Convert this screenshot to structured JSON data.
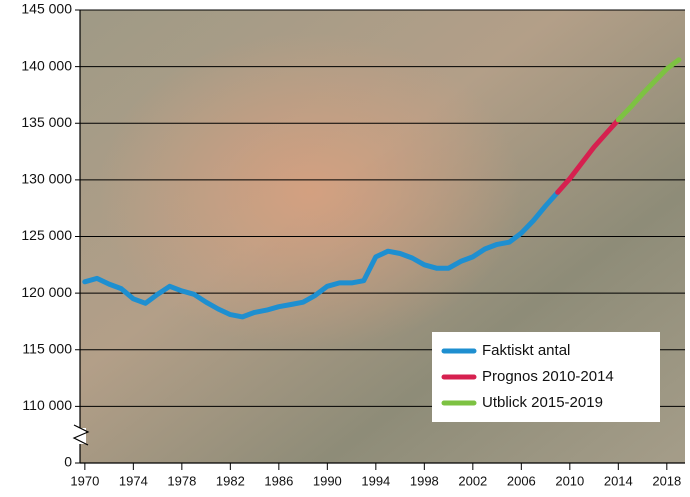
{
  "chart_data": {
    "type": "line",
    "x": [
      1970,
      1971,
      1972,
      1973,
      1974,
      1975,
      1976,
      1977,
      1978,
      1979,
      1980,
      1981,
      1982,
      1983,
      1984,
      1985,
      1986,
      1987,
      1988,
      1989,
      1990,
      1991,
      1992,
      1993,
      1994,
      1995,
      1996,
      1997,
      1998,
      1999,
      2000,
      2001,
      2002,
      2003,
      2004,
      2005,
      2006,
      2007,
      2008,
      2009,
      2010,
      2011,
      2012,
      2013,
      2014,
      2015,
      2016,
      2017,
      2018,
      2019
    ],
    "series": [
      {
        "name": "Faktiskt antal",
        "color": "#1e8fd0",
        "values": [
          121000,
          121300,
          120800,
          120400,
          119500,
          119100,
          119900,
          120600,
          120200,
          119900,
          119200,
          118600,
          118100,
          117900,
          118300,
          118500,
          118800,
          119000,
          119200,
          119800,
          120600,
          120900,
          120900,
          121100,
          123200,
          123700,
          123500,
          123100,
          122500,
          122200,
          122200,
          122800,
          123200,
          123900,
          124300,
          124500,
          125300,
          126400,
          127700,
          128900,
          null,
          null,
          null,
          null,
          null,
          null,
          null,
          null,
          null,
          null
        ]
      },
      {
        "name": "Prognos 2010-2014",
        "color": "#d6204f",
        "values": [
          null,
          null,
          null,
          null,
          null,
          null,
          null,
          null,
          null,
          null,
          null,
          null,
          null,
          null,
          null,
          null,
          null,
          null,
          null,
          null,
          null,
          null,
          null,
          null,
          null,
          null,
          null,
          null,
          null,
          null,
          null,
          null,
          null,
          null,
          null,
          null,
          null,
          null,
          null,
          128900,
          130100,
          131500,
          132900,
          134100,
          135300,
          null,
          null,
          null,
          null,
          null
        ]
      },
      {
        "name": "Utblick 2015-2019",
        "color": "#7dc242",
        "values": [
          null,
          null,
          null,
          null,
          null,
          null,
          null,
          null,
          null,
          null,
          null,
          null,
          null,
          null,
          null,
          null,
          null,
          null,
          null,
          null,
          null,
          null,
          null,
          null,
          null,
          null,
          null,
          null,
          null,
          null,
          null,
          null,
          null,
          null,
          null,
          null,
          null,
          null,
          null,
          null,
          null,
          null,
          null,
          null,
          135300,
          136400,
          137600,
          138700,
          139800,
          140600
        ]
      }
    ],
    "xlim": [
      1969.6,
      2019.5
    ],
    "xticks": [
      1970,
      1974,
      1978,
      1982,
      1986,
      1990,
      1994,
      1998,
      2002,
      2006,
      2010,
      2014,
      2018
    ],
    "ylim": [
      105000,
      145000
    ],
    "yticks": [
      0,
      {
        "value": 110000,
        "label": "110 000"
      },
      {
        "value": 115000,
        "label": "115 000"
      },
      {
        "value": 120000,
        "label": "120 000"
      },
      {
        "value": 125000,
        "label": "125 000"
      },
      {
        "value": 130000,
        "label": "130 000"
      },
      {
        "value": 135000,
        "label": "135 000"
      },
      {
        "value": 140000,
        "label": "140 000"
      },
      {
        "value": 145000,
        "label": "145 000"
      }
    ],
    "axis_break": true,
    "grid": true,
    "legend": "lower right"
  }
}
